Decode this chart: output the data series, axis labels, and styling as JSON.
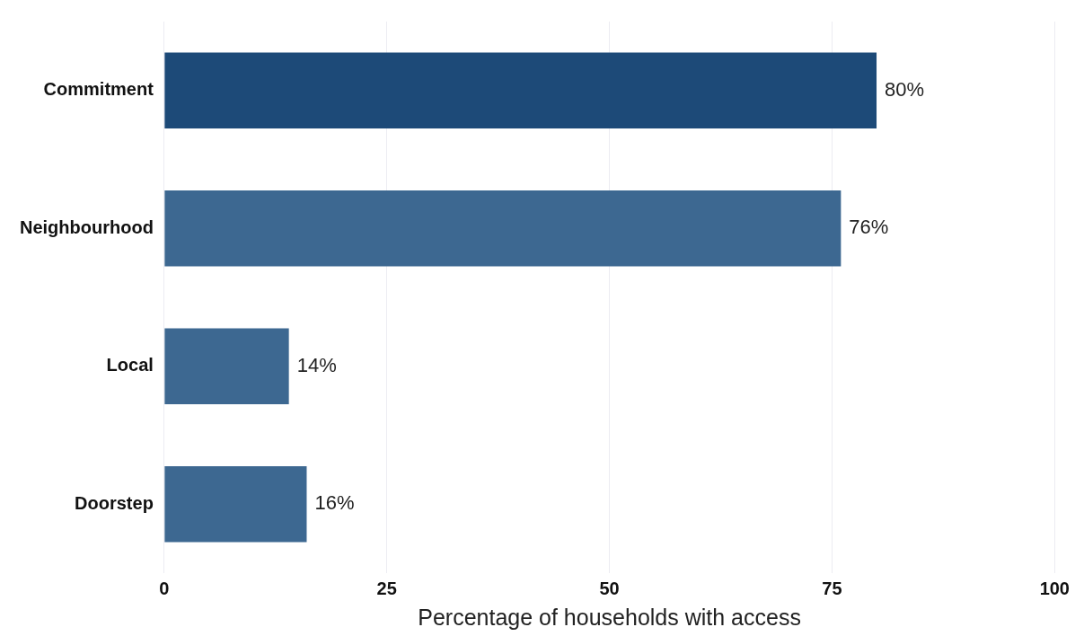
{
  "chart_data": {
    "type": "bar",
    "orientation": "horizontal",
    "xlabel": "Percentage of households with access",
    "categories": [
      "Commitment",
      "Neighbourhood",
      "Local",
      "Doorstep"
    ],
    "values": [
      80,
      76,
      14,
      16
    ],
    "colors": [
      "#1d4a78",
      "#3d6891",
      "#3d6891",
      "#3d6891"
    ],
    "value_labels": [
      "80%",
      "76%",
      "14%",
      "16%"
    ],
    "xlim": [
      0,
      100
    ],
    "xticks": [
      0,
      25,
      50,
      75,
      100
    ],
    "grid": "x",
    "legend": false
  }
}
